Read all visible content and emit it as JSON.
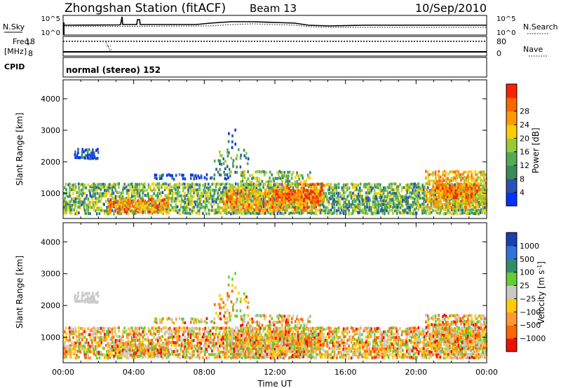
{
  "header": {
    "station_title": "Zhongshan Station (fitACF)",
    "beam_label": "Beam 13",
    "date_label": "10/Sep/2010"
  },
  "noise_panel": {
    "left_label": "N.Sky",
    "right_label": "N.Search",
    "left_ticks": [
      "10^5",
      "10^0"
    ],
    "right_ticks": [
      "10^5",
      "10^0"
    ]
  },
  "freq_panel": {
    "left_label_1": "Freq.",
    "left_label_2": "[MHz]",
    "right_label": "Nave",
    "left_ticks": [
      "18",
      "8"
    ],
    "right_ticks": [
      "80",
      "0"
    ]
  },
  "cpid_panel": {
    "label": "CPID",
    "text": "normal (stereo) 152"
  },
  "colors": {
    "power": [
      "#0033ff",
      "#2a52b5",
      "#3a8a5a",
      "#55aa55",
      "#99cc33",
      "#ffcc00",
      "#ff9900",
      "#ff6600",
      "#ff2200"
    ],
    "velocity": [
      "#1a3fb0",
      "#2e73d6",
      "#2f8f6a",
      "#66cc33",
      "#c8c8c8",
      "#ffcc00",
      "#ff9933",
      "#ff6600",
      "#ee1100"
    ]
  },
  "chart_data": [
    {
      "type": "heatmap",
      "title": "",
      "xlabel": "Time UT",
      "ylabel": "Slant Range [km]",
      "x_ticks": [
        "00:00",
        "04:00",
        "08:00",
        "12:00",
        "16:00",
        "20:00",
        "00:00"
      ],
      "y_ticks": [
        "1000",
        "2000",
        "3000",
        "4000"
      ],
      "ylim": [
        200,
        4600
      ],
      "colorbar_label": "Power [dB]",
      "colorbar_ticks": [
        "4",
        "8",
        "12",
        "16",
        "20",
        "24",
        "28"
      ],
      "colorbar_range": [
        0,
        32
      ]
    },
    {
      "type": "heatmap",
      "title": "",
      "xlabel": "Time UT",
      "ylabel": "Slant Range [km]",
      "x_ticks": [
        "00:00",
        "04:00",
        "08:00",
        "12:00",
        "16:00",
        "20:00",
        "00:00"
      ],
      "y_ticks": [
        "1000",
        "2000",
        "3000",
        "4000"
      ],
      "ylim": [
        200,
        4600
      ],
      "colorbar_label": "Velocity [m s",
      "colorbar_label_sup": "-1",
      "colorbar_label_end": "]",
      "colorbar_ticks": [
        "1000",
        "500",
        "100",
        "25",
        "-25",
        "-100",
        "-500",
        "-1000"
      ]
    }
  ]
}
